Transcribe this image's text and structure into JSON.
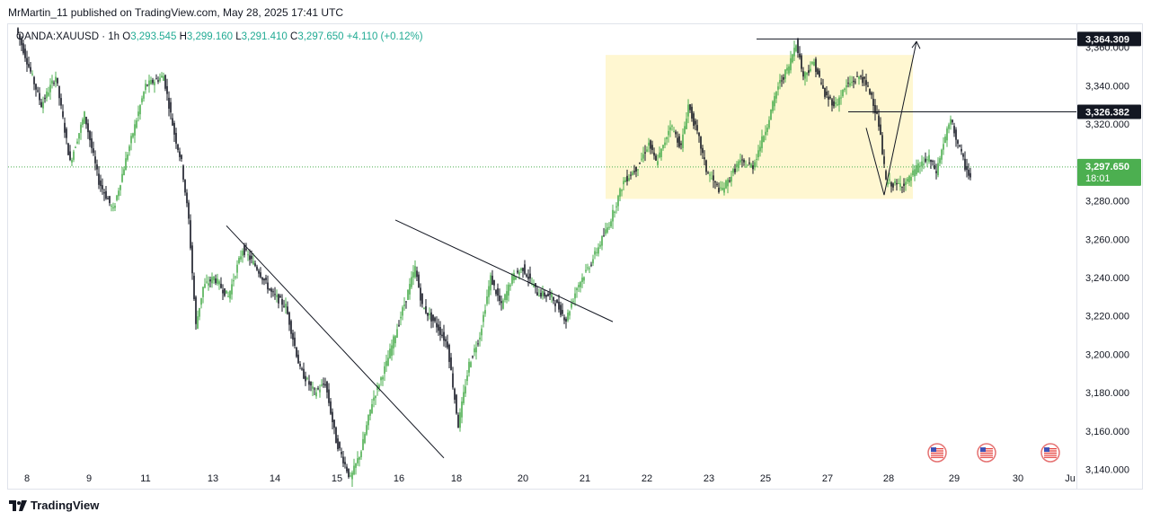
{
  "header": {
    "publisher_line": "MrMartin_11 published on TradingView.com, May 28, 2025 17:41 UTC"
  },
  "legend": {
    "symbol": "OANDA:XAUUSD · 1h",
    "open_label": "O",
    "open": "3,293.545",
    "high_label": "H",
    "high": "3,299.160",
    "low_label": "L",
    "low": "3,291.410",
    "close_label": "C",
    "close": "3,297.650",
    "change": "+4.110 (+0.12%)"
  },
  "footer": {
    "brand": "TradingView",
    "logo_icon": "tradingview-logo-icon"
  },
  "colors": {
    "up": "#4caf50",
    "down": "#131722",
    "price_label": "#4caf50",
    "level_label": "#131722",
    "zone": "#fff7d1",
    "price_line": "#4caf50"
  },
  "chart_data": {
    "type": "candlestick",
    "symbol": "OANDA:XAUUSD",
    "interval": "1h",
    "ylim": [
      3130,
      3372
    ],
    "y_ticks": [
      3140,
      3160,
      3180,
      3200,
      3220,
      3240,
      3260,
      3280,
      3300,
      3320,
      3340,
      3360
    ],
    "y_tick_labels": [
      "3,140.000",
      "3,160.000",
      "3,180.000",
      "3,200.000",
      "3,220.000",
      "3,240.000",
      "3,260.000",
      "3,280.000",
      "3,300.000",
      "3,320.000",
      "3,340.000",
      "3,360.000"
    ],
    "x_ticks": [
      "8",
      "9",
      "11",
      "13",
      "14",
      "15",
      "16",
      "18",
      "20",
      "21",
      "22",
      "23",
      "25",
      "27",
      "28",
      "29",
      "30",
      "Ju"
    ],
    "last_price": {
      "value": 3297.65,
      "label": "3,297.650",
      "countdown": "18:01"
    },
    "levels": [
      {
        "value": 3364.309,
        "label": "3,364.309"
      },
      {
        "value": 3326.382,
        "label": "3,326.382"
      }
    ],
    "zone": {
      "top": 3356,
      "bottom": 3281
    },
    "event_icons": [
      "us-flag-icon",
      "us-flag-icon",
      "us-flag-icon"
    ],
    "path": [
      [
        0,
        3370
      ],
      [
        14,
        3330
      ],
      [
        22,
        3345
      ],
      [
        30,
        3300
      ],
      [
        38,
        3325
      ],
      [
        46,
        3290
      ],
      [
        54,
        3275
      ],
      [
        62,
        3305
      ],
      [
        72,
        3340
      ],
      [
        82,
        3345
      ],
      [
        88,
        3315
      ],
      [
        92,
        3300
      ],
      [
        96,
        3270
      ],
      [
        100,
        3215
      ],
      [
        104,
        3235
      ],
      [
        110,
        3240
      ],
      [
        118,
        3230
      ],
      [
        126,
        3255
      ],
      [
        134,
        3245
      ],
      [
        142,
        3232
      ],
      [
        150,
        3225
      ],
      [
        158,
        3192
      ],
      [
        166,
        3180
      ],
      [
        172,
        3185
      ],
      [
        178,
        3155
      ],
      [
        186,
        3135
      ],
      [
        192,
        3150
      ],
      [
        198,
        3175
      ],
      [
        206,
        3195
      ],
      [
        214,
        3220
      ],
      [
        222,
        3245
      ],
      [
        226,
        3225
      ],
      [
        234,
        3215
      ],
      [
        240,
        3205
      ],
      [
        246,
        3163
      ],
      [
        252,
        3195
      ],
      [
        258,
        3210
      ],
      [
        264,
        3240
      ],
      [
        270,
        3225
      ],
      [
        276,
        3240
      ],
      [
        282,
        3245
      ],
      [
        290,
        3232
      ],
      [
        298,
        3230
      ],
      [
        306,
        3218
      ],
      [
        312,
        3235
      ],
      [
        320,
        3248
      ],
      [
        330,
        3268
      ],
      [
        338,
        3290
      ],
      [
        346,
        3298
      ],
      [
        352,
        3310
      ],
      [
        356,
        3300
      ],
      [
        360,
        3308
      ],
      [
        364,
        3320
      ],
      [
        370,
        3308
      ],
      [
        374,
        3330
      ],
      [
        380,
        3312
      ],
      [
        384,
        3296
      ],
      [
        388,
        3290
      ],
      [
        392,
        3285
      ],
      [
        396,
        3290
      ],
      [
        402,
        3300
      ],
      [
        410,
        3298
      ],
      [
        418,
        3320
      ],
      [
        424,
        3340
      ],
      [
        430,
        3350
      ],
      [
        434,
        3363
      ],
      [
        438,
        3345
      ],
      [
        444,
        3352
      ],
      [
        450,
        3335
      ],
      [
        456,
        3330
      ],
      [
        462,
        3340
      ],
      [
        470,
        3345
      ],
      [
        476,
        3335
      ],
      [
        480,
        3320
      ],
      [
        484,
        3290
      ],
      [
        490,
        3288
      ],
      [
        496,
        3290
      ],
      [
        502,
        3298
      ],
      [
        508,
        3302
      ],
      [
        512,
        3295
      ],
      [
        516,
        3310
      ],
      [
        520,
        3322
      ],
      [
        524,
        3310
      ],
      [
        528,
        3298
      ],
      [
        531,
        3292
      ]
    ]
  }
}
